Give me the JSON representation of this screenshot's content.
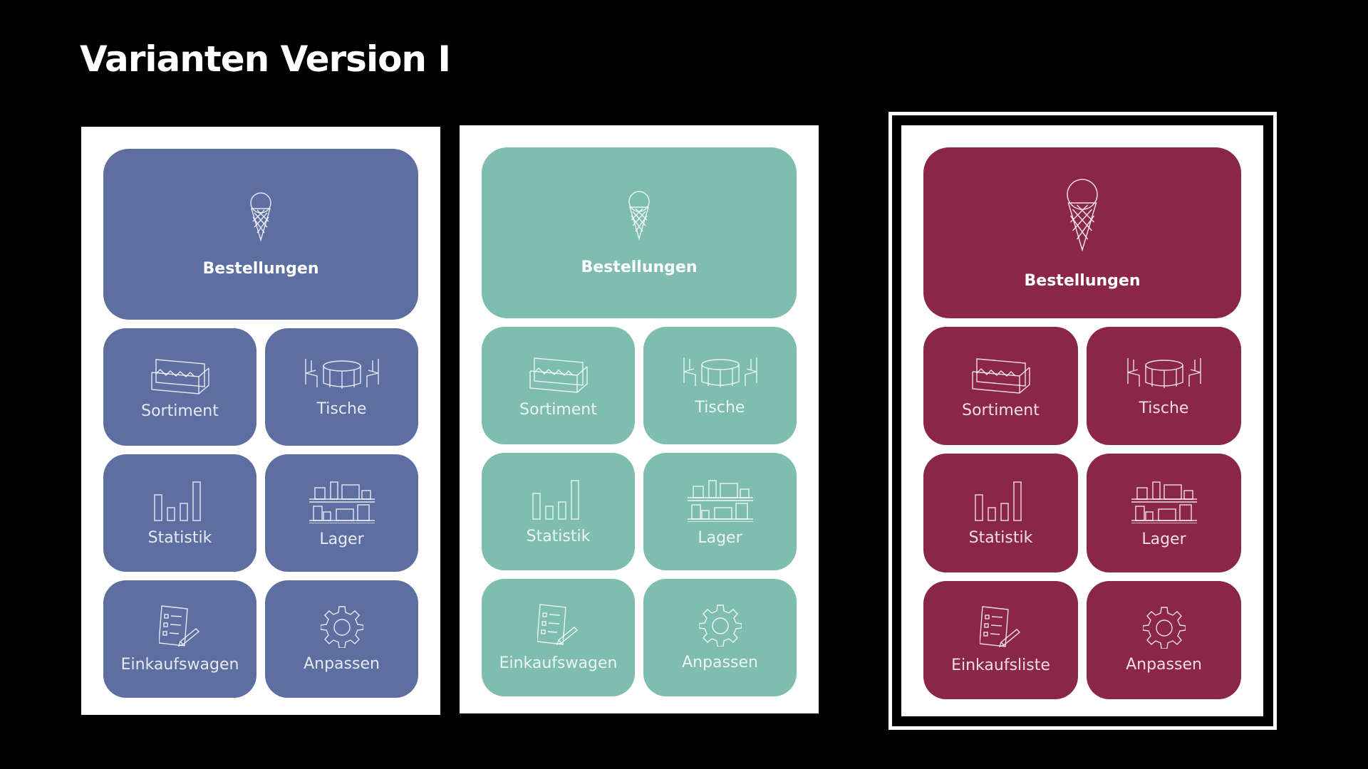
{
  "page": {
    "title": "Varianten Version I"
  },
  "variants": [
    {
      "name": "variant-blue",
      "color": "#5d6fa1",
      "tiles": {
        "orders": "Bestellungen",
        "assortment": "Sortiment",
        "tables": "Tische",
        "statistics": "Statistik",
        "storage": "Lager",
        "cart": "Einkaufswagen",
        "customize": "Anpassen"
      }
    },
    {
      "name": "variant-teal",
      "color": "#7fbdae",
      "tiles": {
        "orders": "Bestellungen",
        "assortment": "Sortiment",
        "tables": "Tische",
        "statistics": "Statistik",
        "storage": "Lager",
        "cart": "Einkaufswagen",
        "customize": "Anpassen"
      }
    },
    {
      "name": "variant-burgundy",
      "color": "#8b2648",
      "selected": true,
      "tiles": {
        "orders": "Bestellungen",
        "assortment": "Sortiment",
        "tables": "Tische",
        "statistics": "Statistik",
        "storage": "Lager",
        "cart": "Einkaufsliste",
        "customize": "Anpassen"
      }
    }
  ],
  "icons": {
    "orders": "ice-cream-icon",
    "assortment": "ice-cream-display-icon",
    "tables": "table-chairs-icon",
    "statistics": "bar-chart-icon",
    "storage": "shelves-icon",
    "cart": "checklist-icon",
    "customize": "gear-icon"
  }
}
